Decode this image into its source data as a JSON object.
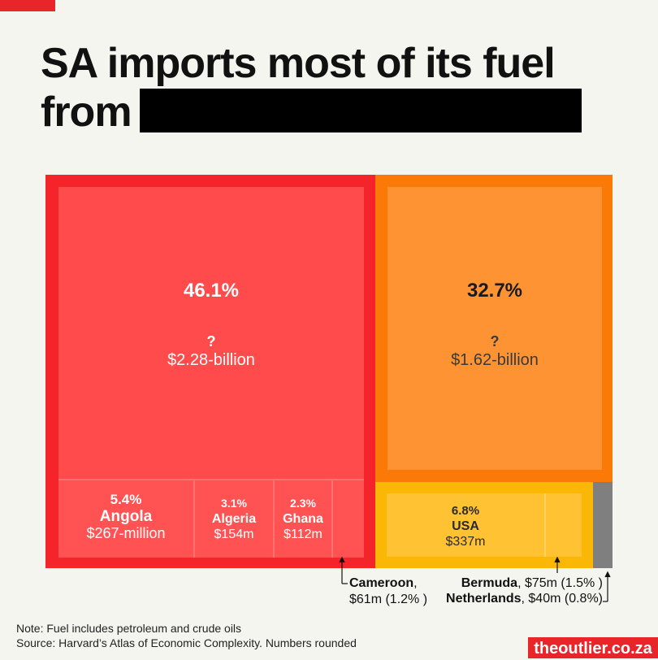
{
  "title": {
    "line1": "SA imports most of its fuel",
    "line2": "from"
  },
  "chart_data": {
    "type": "treemap",
    "title": "SA imports most of its fuel from",
    "unit": "USD",
    "items": [
      {
        "name": "?",
        "share_pct": 46.1,
        "value": "$2.28-billion",
        "value_usd_m": 2280,
        "group": "red"
      },
      {
        "name": "Angola",
        "share_pct": 5.4,
        "value": "$267-million",
        "value_usd_m": 267,
        "group": "red"
      },
      {
        "name": "Algeria",
        "share_pct": 3.1,
        "value": "$154m",
        "value_usd_m": 154,
        "group": "red"
      },
      {
        "name": "Ghana",
        "share_pct": 2.3,
        "value": "$112m",
        "value_usd_m": 112,
        "group": "red"
      },
      {
        "name": "Cameroon",
        "share_pct": 1.2,
        "value": "$61m",
        "value_usd_m": 61,
        "group": "red"
      },
      {
        "name": "?",
        "share_pct": 32.7,
        "value": "$1.62-billion",
        "value_usd_m": 1620,
        "group": "orange"
      },
      {
        "name": "USA",
        "share_pct": 6.8,
        "value": "$337m",
        "value_usd_m": 337,
        "group": "yellow"
      },
      {
        "name": "Bermuda",
        "share_pct": 1.5,
        "value": "$75m",
        "value_usd_m": 75,
        "group": "yellow"
      },
      {
        "name": "Netherlands",
        "share_pct": 0.8,
        "value": "$40m",
        "value_usd_m": 40,
        "group": "grey"
      }
    ]
  },
  "labels": {
    "big_red_pct": "46.1%",
    "big_red_name": "?",
    "big_red_value": "$2.28-billion",
    "big_orange_pct": "32.7%",
    "big_orange_name": "?",
    "big_orange_value": "$1.62-billion",
    "angola_pct": "5.4%",
    "angola_name": "Angola",
    "angola_value": "$267-million",
    "algeria_pct": "3.1%",
    "algeria_name": "Algeria",
    "algeria_value": "$154m",
    "ghana_pct": "2.3%",
    "ghana_name": "Ghana",
    "ghana_value": "$112m",
    "usa_pct": "6.8%",
    "usa_name": "USA",
    "usa_value": "$337m",
    "cameroon_name": "Cameroon",
    "cameroon_rest": ",",
    "cameroon_detail": "$61m (1.2% )",
    "bermuda_name": "Bermuda",
    "bermuda_detail": ", $75m (1.5% )",
    "netherlands_name": "Netherlands",
    "netherlands_detail": ", $40m (0.8%)"
  },
  "note": {
    "line1": "Note: Fuel includes petroleum and crude oils",
    "line2": "Source: Harvard’s Atlas of Economic Complexity. Numbers rounded"
  },
  "brand": "theoutlier.co.za",
  "colors": {
    "red_outer": "#f5232a",
    "red_inner": "#ff4b4c",
    "red_cell": "#ff5253",
    "orange_outer": "#fb7a07",
    "orange_inner": "#fd9333",
    "yellow_outer": "#fbb705",
    "yellow_inner": "#ffc233",
    "grey": "#7f7f7f",
    "brand_red": "#e8262a"
  }
}
